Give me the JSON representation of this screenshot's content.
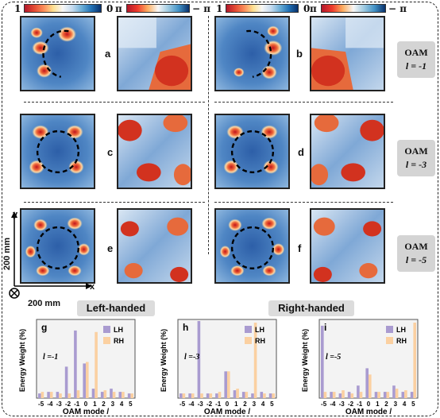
{
  "colorbars": [
    {
      "left": "1",
      "right": "0",
      "kind": "amp"
    },
    {
      "left": "π",
      "right": "− π",
      "kind": "phase"
    },
    {
      "left": "1",
      "right": "0",
      "kind": "amp"
    },
    {
      "left": "π",
      "right": "− π",
      "kind": "phase"
    }
  ],
  "panel_labels": [
    "a",
    "b",
    "c",
    "d",
    "e",
    "f"
  ],
  "oam_rows": [
    {
      "title": "OAM",
      "l_text": "l = -1"
    },
    {
      "title": "OAM",
      "l_text": "l = -3"
    },
    {
      "title": "OAM",
      "l_text": "l = -5"
    }
  ],
  "axes": {
    "y": "y",
    "x": "x",
    "yscale": "200 mm",
    "xscale": "200 mm"
  },
  "handedness": {
    "left": "Left-handed",
    "right": "Right-handed"
  },
  "colors": {
    "lh": "#a99bd0",
    "rh": "#fbd0a1"
  },
  "chart_data": [
    {
      "type": "bar",
      "panel": "g",
      "annotation": "l =-1",
      "categories": [
        "-5",
        "-4",
        "-3",
        "-2",
        "-1",
        "0",
        "1",
        "2",
        "3",
        "4",
        "5"
      ],
      "series": [
        {
          "name": "LH",
          "values": [
            0.03,
            0.04,
            0.04,
            0.2,
            0.43,
            0.22,
            0.06,
            0.04,
            0.06,
            0.04,
            0.03
          ]
        },
        {
          "name": "RH",
          "values": [
            0.04,
            0.04,
            0.03,
            0.03,
            0.05,
            0.23,
            0.42,
            0.05,
            0.04,
            0.04,
            0.03
          ]
        }
      ],
      "ylabel": "Energy Weight (%)",
      "xlabel": "OAM mode /",
      "ylim": [
        0,
        0.5
      ],
      "legend": "top-right"
    },
    {
      "type": "bar",
      "panel": "h",
      "annotation": "l =-3",
      "categories": [
        "-5",
        "-4",
        "-3",
        "-2",
        "-1",
        "0",
        "1",
        "2",
        "3",
        "4",
        "5"
      ],
      "series": [
        {
          "name": "LH",
          "values": [
            0.03,
            0.03,
            0.49,
            0.03,
            0.03,
            0.17,
            0.05,
            0.04,
            0.03,
            0.04,
            0.03
          ]
        },
        {
          "name": "RH",
          "values": [
            0.03,
            0.03,
            0.03,
            0.03,
            0.04,
            0.17,
            0.06,
            0.04,
            0.48,
            0.03,
            0.03
          ]
        }
      ],
      "ylabel": "Energy Weight (%)",
      "xlabel": "OAM mode /",
      "ylim": [
        0,
        0.5
      ],
      "legend": "top-right"
    },
    {
      "type": "bar",
      "panel": "i",
      "annotation": "l =-5",
      "categories": [
        "-5",
        "-4",
        "-3",
        "-2",
        "-1",
        "0",
        "1",
        "2",
        "3",
        "4",
        "5"
      ],
      "series": [
        {
          "name": "LH",
          "values": [
            0.46,
            0.04,
            0.03,
            0.04,
            0.08,
            0.19,
            0.04,
            0.04,
            0.08,
            0.04,
            0.04
          ]
        },
        {
          "name": "RH",
          "values": [
            0.04,
            0.04,
            0.05,
            0.03,
            0.04,
            0.15,
            0.04,
            0.04,
            0.06,
            0.05,
            0.48
          ]
        }
      ],
      "ylabel": "Energy Weight (%)",
      "xlabel": "OAM mode /",
      "ylim": [
        0,
        0.5
      ],
      "legend": "top-right"
    }
  ]
}
